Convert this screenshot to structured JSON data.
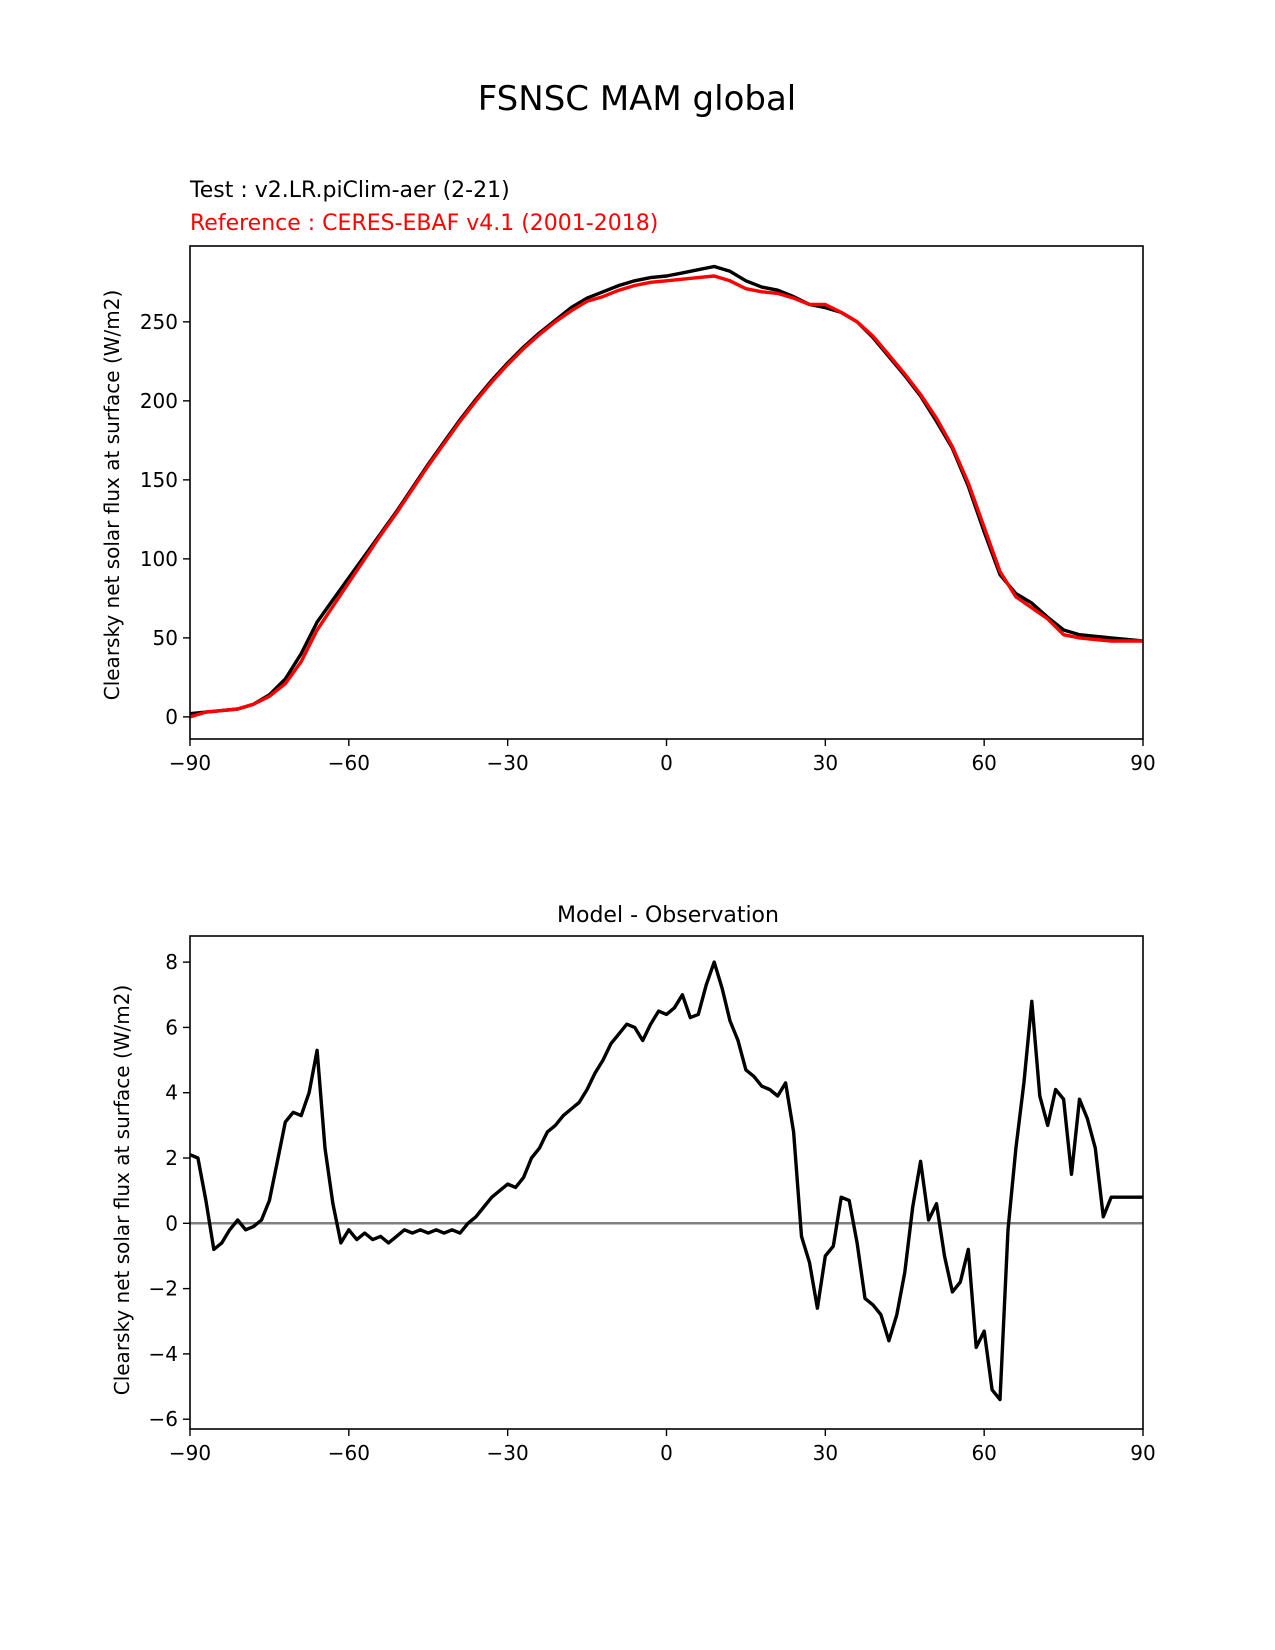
{
  "figure": {
    "suptitle": "FSNSC MAM global"
  },
  "chart_data": [
    {
      "type": "line",
      "test_label": "Test : v2.LR.piClim-aer (2-21)",
      "reference_label": "Reference : CERES-EBAF v4.1 (2001-2018)",
      "ylabel": "Clearsky net solar flux at surface (W/m2)",
      "xlim": [
        -90,
        90
      ],
      "ylim": [
        -14,
        298
      ],
      "xticks": [
        -90,
        -60,
        -30,
        0,
        30,
        60,
        90
      ],
      "xtick_labels": [
        "−90",
        "−60",
        "−30",
        "0",
        "30",
        "60",
        "90"
      ],
      "yticks": [
        0,
        50,
        100,
        150,
        200,
        250
      ],
      "ytick_labels": [
        "0",
        "50",
        "100",
        "150",
        "200",
        "250"
      ],
      "colors": {
        "test": "#000000",
        "reference": "#ff0000"
      },
      "series": [
        {
          "key": "test",
          "x": [
            -90,
            -87,
            -84,
            -81,
            -78,
            -75,
            -72,
            -69,
            -66,
            -63,
            -60,
            -57,
            -54,
            -51,
            -48,
            -45,
            -42,
            -39,
            -36,
            -33,
            -30,
            -27,
            -24,
            -21,
            -18,
            -15,
            -12,
            -9,
            -6,
            -3,
            0,
            3,
            6,
            9,
            12,
            15,
            18,
            21,
            24,
            27,
            30,
            33,
            36,
            39,
            42,
            45,
            48,
            51,
            54,
            57,
            60,
            63,
            66,
            69,
            72,
            75,
            78,
            81,
            84,
            87,
            90
          ],
          "y": [
            2,
            3,
            4,
            5,
            8,
            14,
            24,
            40,
            60,
            74,
            88,
            102,
            116,
            130,
            145,
            160,
            174,
            188,
            201,
            213,
            224,
            234,
            243,
            251,
            259,
            265,
            269,
            273,
            276,
            278,
            279,
            281,
            283,
            285,
            282,
            276,
            272,
            270,
            266,
            261,
            259,
            256,
            250,
            240,
            228,
            216,
            203,
            187,
            170,
            146,
            117,
            90,
            78,
            72,
            63,
            55,
            52,
            51,
            50,
            49,
            48
          ]
        },
        {
          "key": "reference",
          "x": [
            -90,
            -87,
            -84,
            -81,
            -78,
            -75,
            -72,
            -69,
            -66,
            -63,
            -60,
            -57,
            -54,
            -51,
            -48,
            -45,
            -42,
            -39,
            -36,
            -33,
            -30,
            -27,
            -24,
            -21,
            -18,
            -15,
            -12,
            -9,
            -6,
            -3,
            0,
            3,
            6,
            9,
            12,
            15,
            18,
            21,
            24,
            27,
            30,
            33,
            36,
            39,
            42,
            45,
            48,
            51,
            54,
            57,
            60,
            63,
            66,
            69,
            72,
            75,
            78,
            81,
            84,
            87,
            90
          ],
          "y": [
            0,
            3,
            4,
            5,
            8,
            13,
            21,
            35,
            55,
            70,
            85,
            100,
            115,
            129,
            144,
            159,
            173,
            187,
            200,
            212,
            223,
            233,
            242,
            250,
            257,
            263,
            266,
            270,
            273,
            275,
            276,
            277,
            278,
            279,
            276,
            271,
            269,
            268,
            265,
            261,
            261,
            256,
            250,
            241,
            229,
            217,
            204,
            189,
            171,
            148,
            120,
            92,
            76,
            69,
            62,
            52,
            50,
            49,
            48,
            48,
            48
          ]
        }
      ]
    },
    {
      "type": "line",
      "title": "Model - Observation",
      "ylabel": "Clearsky net solar flux at surface (W/m2)",
      "xlim": [
        -90,
        90
      ],
      "ylim": [
        -6.3,
        8.8
      ],
      "xticks": [
        -90,
        -60,
        -30,
        0,
        30,
        60,
        90
      ],
      "xtick_labels": [
        "−90",
        "−60",
        "−30",
        "0",
        "30",
        "60",
        "90"
      ],
      "yticks": [
        -6,
        -4,
        -2,
        0,
        2,
        4,
        6,
        8
      ],
      "ytick_labels": [
        "−6",
        "−4",
        "−2",
        "0",
        "2",
        "4",
        "6",
        "8"
      ],
      "zero_line_color": "#808080",
      "series": [
        {
          "key": "difference",
          "color": "#000000",
          "x": [
            -90,
            -88.5,
            -87,
            -85.5,
            -84,
            -82.5,
            -81,
            -79.5,
            -78,
            -76.5,
            -75,
            -73.5,
            -72,
            -70.5,
            -69,
            -67.5,
            -66,
            -64.5,
            -63,
            -61.5,
            -60,
            -58.5,
            -57,
            -55.5,
            -54,
            -52.5,
            -51,
            -49.5,
            -48,
            -46.5,
            -45,
            -43.5,
            -42,
            -40.5,
            -39,
            -37.5,
            -36,
            -34.5,
            -33,
            -31.5,
            -30,
            -28.5,
            -27,
            -25.5,
            -24,
            -22.5,
            -21,
            -19.5,
            -18,
            -16.5,
            -15,
            -13.5,
            -12,
            -10.5,
            -9,
            -7.5,
            -6,
            -4.5,
            -3,
            -1.5,
            0,
            1.5,
            3,
            4.5,
            6,
            7.5,
            9,
            10.5,
            12,
            13.5,
            15,
            16.5,
            18,
            19.5,
            21,
            22.5,
            24,
            25.5,
            27,
            28.5,
            30,
            31.5,
            33,
            34.5,
            36,
            37.5,
            39,
            40.5,
            42,
            43.5,
            45,
            46.5,
            48,
            49.5,
            51,
            52.5,
            54,
            55.5,
            57,
            58.5,
            60,
            61.5,
            63,
            64.5,
            66,
            67.5,
            69,
            70.5,
            72,
            73.5,
            75,
            76.5,
            78,
            79.5,
            81,
            82.5,
            84,
            85.5,
            87,
            88.5,
            90
          ],
          "y": [
            2.1,
            2.0,
            0.7,
            -0.8,
            -0.6,
            -0.2,
            0.1,
            -0.2,
            -0.1,
            0.1,
            0.7,
            1.9,
            3.1,
            3.4,
            3.3,
            4.0,
            5.3,
            2.3,
            0.6,
            -0.6,
            -0.2,
            -0.5,
            -0.3,
            -0.5,
            -0.4,
            -0.6,
            -0.4,
            -0.2,
            -0.3,
            -0.2,
            -0.3,
            -0.2,
            -0.3,
            -0.2,
            -0.3,
            0.0,
            0.2,
            0.5,
            0.8,
            1.0,
            1.2,
            1.1,
            1.4,
            2.0,
            2.3,
            2.8,
            3.0,
            3.3,
            3.5,
            3.7,
            4.1,
            4.6,
            5.0,
            5.5,
            5.8,
            6.1,
            6.0,
            5.6,
            6.1,
            6.5,
            6.4,
            6.6,
            7.0,
            6.3,
            6.4,
            7.3,
            8.0,
            7.2,
            6.2,
            5.6,
            4.7,
            4.5,
            4.2,
            4.1,
            3.9,
            4.3,
            2.8,
            -0.4,
            -1.2,
            -2.6,
            -1.0,
            -0.7,
            0.8,
            0.7,
            -0.6,
            -2.3,
            -2.5,
            -2.8,
            -3.6,
            -2.8,
            -1.5,
            0.5,
            1.9,
            0.1,
            0.6,
            -1.0,
            -2.1,
            -1.8,
            -0.8,
            -3.8,
            -3.3,
            -5.1,
            -5.4,
            -0.2,
            2.3,
            4.3,
            6.8,
            3.9,
            3.0,
            4.1,
            3.8,
            1.5,
            3.8,
            3.2,
            2.3,
            0.2,
            0.8,
            0.8,
            0.8,
            0.8,
            0.8
          ]
        }
      ]
    }
  ]
}
